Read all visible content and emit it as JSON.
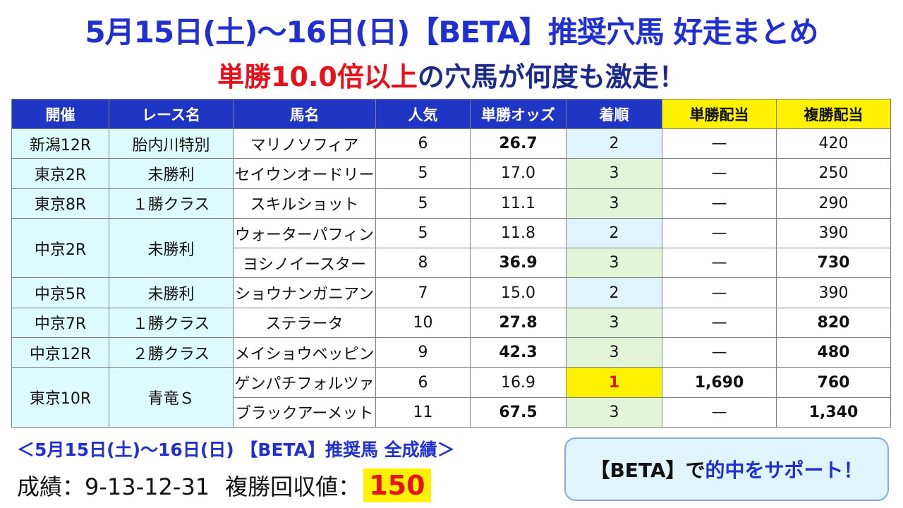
{
  "header": {
    "title": "5月15日(土)～16日(日)【BETA】推奨穴馬 好走まとめ",
    "subtitle_red": "単勝10.0倍以上",
    "subtitle_rest": "の穴馬が何度も激走！"
  },
  "table": {
    "headers": [
      "開催",
      "レース名",
      "馬名",
      "人気",
      "単勝オッズ",
      "着順",
      "単勝配当",
      "複勝配当"
    ],
    "rows": [
      {
        "venue": "新潟12R",
        "race": "胎内川特別",
        "horse": "マリノソフィア",
        "pop": "6",
        "odds": "26.7",
        "finish": "2",
        "win": "—",
        "place": "420"
      },
      {
        "venue": "東京2R",
        "race": "未勝利",
        "horse": "セイウンオードリー",
        "pop": "5",
        "odds": "17.0",
        "finish": "3",
        "win": "—",
        "place": "250"
      },
      {
        "venue": "東京8R",
        "race": "１勝クラス",
        "horse": "スキルショット",
        "pop": "5",
        "odds": "11.1",
        "finish": "3",
        "win": "—",
        "place": "290"
      },
      {
        "venue": "中京2R",
        "race": "未勝利",
        "horse": "ウォーターパフィン",
        "pop": "5",
        "odds": "11.8",
        "finish": "2",
        "win": "—",
        "place": "390"
      },
      {
        "horse": "ヨシノイースター",
        "pop": "8",
        "odds": "36.9",
        "finish": "3",
        "win": "—",
        "place": "730"
      },
      {
        "venue": "中京5R",
        "race": "未勝利",
        "horse": "ショウナンガニアン",
        "pop": "7",
        "odds": "15.0",
        "finish": "2",
        "win": "—",
        "place": "390"
      },
      {
        "venue": "中京7R",
        "race": "１勝クラス",
        "horse": "ステラータ",
        "pop": "10",
        "odds": "27.8",
        "finish": "3",
        "win": "—",
        "place": "820"
      },
      {
        "venue": "中京12R",
        "race": "２勝クラス",
        "horse": "メイショウベッピン",
        "pop": "9",
        "odds": "42.3",
        "finish": "3",
        "win": "—",
        "place": "480"
      },
      {
        "venue": "東京10R",
        "race": "青竜Ｓ",
        "horse": "ゲンパチフォルツァ",
        "pop": "6",
        "odds": "16.9",
        "finish": "1",
        "win": "1,690",
        "place": "760"
      },
      {
        "horse": "ブラックアーメット",
        "pop": "11",
        "odds": "67.5",
        "finish": "3",
        "win": "—",
        "place": "1,340"
      }
    ]
  },
  "summary": {
    "heading": "＜5月15日(土)～16日(日) 【BETA】推奨馬 全成績＞",
    "record_label": "成績：9-13-12-31",
    "recovery_label": "複勝回収値：",
    "recovery_value": "150"
  },
  "support": {
    "prefix": "【BETA】で",
    "highlight": "的中をサポート！"
  },
  "colors": {
    "title_blue": "#1f2fd1",
    "header_blue": "#1f35c4",
    "accent_red": "#e8101a",
    "highlight_yellow": "#fff200",
    "venue_cyan": "#ddfbfc",
    "second_place_blue": "#dff4fb",
    "third_place_green": "#e3f5d8"
  }
}
